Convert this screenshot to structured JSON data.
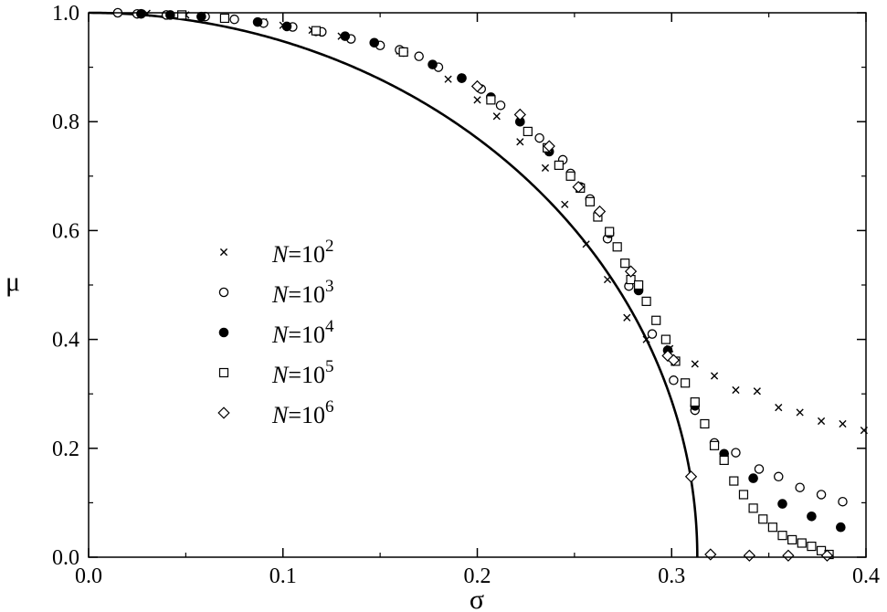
{
  "chart_data": {
    "type": "scatter",
    "xlabel": "σ",
    "ylabel": "μ",
    "xlim": [
      0.0,
      0.4
    ],
    "ylim": [
      0.0,
      1.0
    ],
    "x_ticks": [
      "0.0",
      "0.1",
      "0.2",
      "0.3",
      "0.4"
    ],
    "y_ticks": [
      "0.0",
      "0.2",
      "0.4",
      "0.6",
      "0.8",
      "1.0"
    ],
    "x_tick_values": [
      0.0,
      0.1,
      0.2,
      0.3,
      0.4
    ],
    "y_tick_values": [
      0.0,
      0.2,
      0.4,
      0.6,
      0.8,
      1.0
    ],
    "grid": false,
    "legend_position": "left-middle",
    "series": [
      {
        "name": "N=10^2",
        "legend_prefix": "N",
        "legend_middle": "=10",
        "legend_exp": "2",
        "marker": "cross",
        "points": [
          [
            0.03,
            0.999
          ],
          [
            0.05,
            0.996
          ],
          [
            0.07,
            0.99
          ],
          [
            0.09,
            0.983
          ],
          [
            0.1,
            0.977
          ],
          [
            0.115,
            0.968
          ],
          [
            0.13,
            0.957
          ],
          [
            0.16,
            0.93
          ],
          [
            0.185,
            0.878
          ],
          [
            0.2,
            0.84
          ],
          [
            0.21,
            0.81
          ],
          [
            0.222,
            0.763
          ],
          [
            0.235,
            0.715
          ],
          [
            0.245,
            0.648
          ],
          [
            0.256,
            0.575
          ],
          [
            0.267,
            0.51
          ],
          [
            0.277,
            0.44
          ],
          [
            0.287,
            0.4
          ],
          [
            0.299,
            0.383
          ],
          [
            0.312,
            0.355
          ],
          [
            0.322,
            0.333
          ],
          [
            0.333,
            0.307
          ],
          [
            0.344,
            0.305
          ],
          [
            0.355,
            0.275
          ],
          [
            0.366,
            0.266
          ],
          [
            0.377,
            0.25
          ],
          [
            0.388,
            0.245
          ],
          [
            0.399,
            0.233
          ]
        ]
      },
      {
        "name": "N=10^3",
        "legend_prefix": "N",
        "legend_middle": "=10",
        "legend_exp": "3",
        "marker": "circle-open",
        "points": [
          [
            0.015,
            1.0
          ],
          [
            0.025,
            0.998
          ],
          [
            0.04,
            0.996
          ],
          [
            0.06,
            0.993
          ],
          [
            0.075,
            0.988
          ],
          [
            0.09,
            0.981
          ],
          [
            0.105,
            0.974
          ],
          [
            0.12,
            0.965
          ],
          [
            0.135,
            0.952
          ],
          [
            0.15,
            0.94
          ],
          [
            0.16,
            0.932
          ],
          [
            0.17,
            0.92
          ],
          [
            0.18,
            0.9
          ],
          [
            0.192,
            0.88
          ],
          [
            0.202,
            0.86
          ],
          [
            0.212,
            0.83
          ],
          [
            0.222,
            0.8
          ],
          [
            0.232,
            0.77
          ],
          [
            0.244,
            0.73
          ],
          [
            0.248,
            0.705
          ],
          [
            0.258,
            0.658
          ],
          [
            0.267,
            0.585
          ],
          [
            0.278,
            0.498
          ],
          [
            0.29,
            0.41
          ],
          [
            0.301,
            0.325
          ],
          [
            0.312,
            0.27
          ],
          [
            0.322,
            0.21
          ],
          [
            0.333,
            0.192
          ],
          [
            0.345,
            0.162
          ],
          [
            0.355,
            0.148
          ],
          [
            0.366,
            0.128
          ],
          [
            0.377,
            0.115
          ],
          [
            0.388,
            0.102
          ]
        ]
      },
      {
        "name": "N=10^4",
        "legend_prefix": "N",
        "legend_middle": "=10",
        "legend_exp": "4",
        "marker": "circle-filled",
        "points": [
          [
            0.027,
            0.998
          ],
          [
            0.042,
            0.996
          ],
          [
            0.058,
            0.993
          ],
          [
            0.087,
            0.983
          ],
          [
            0.102,
            0.975
          ],
          [
            0.117,
            0.966
          ],
          [
            0.132,
            0.957
          ],
          [
            0.147,
            0.945
          ],
          [
            0.162,
            0.928
          ],
          [
            0.177,
            0.905
          ],
          [
            0.192,
            0.88
          ],
          [
            0.207,
            0.845
          ],
          [
            0.222,
            0.8
          ],
          [
            0.237,
            0.745
          ],
          [
            0.253,
            0.68
          ],
          [
            0.268,
            0.595
          ],
          [
            0.283,
            0.49
          ],
          [
            0.298,
            0.38
          ],
          [
            0.312,
            0.278
          ],
          [
            0.327,
            0.19
          ],
          [
            0.342,
            0.145
          ],
          [
            0.357,
            0.098
          ],
          [
            0.372,
            0.075
          ],
          [
            0.387,
            0.055
          ]
        ]
      },
      {
        "name": "N=10^5",
        "legend_prefix": "N",
        "legend_middle": "=10",
        "legend_exp": "5",
        "marker": "square-open",
        "points": [
          [
            0.048,
            0.996
          ],
          [
            0.07,
            0.99
          ],
          [
            0.117,
            0.967
          ],
          [
            0.162,
            0.928
          ],
          [
            0.207,
            0.84
          ],
          [
            0.226,
            0.782
          ],
          [
            0.236,
            0.752
          ],
          [
            0.242,
            0.72
          ],
          [
            0.248,
            0.7
          ],
          [
            0.253,
            0.678
          ],
          [
            0.258,
            0.653
          ],
          [
            0.262,
            0.625
          ],
          [
            0.268,
            0.598
          ],
          [
            0.272,
            0.57
          ],
          [
            0.276,
            0.54
          ],
          [
            0.279,
            0.51
          ],
          [
            0.283,
            0.5
          ],
          [
            0.287,
            0.47
          ],
          [
            0.292,
            0.435
          ],
          [
            0.297,
            0.4
          ],
          [
            0.302,
            0.36
          ],
          [
            0.307,
            0.32
          ],
          [
            0.312,
            0.285
          ],
          [
            0.317,
            0.245
          ],
          [
            0.322,
            0.205
          ],
          [
            0.327,
            0.178
          ],
          [
            0.332,
            0.14
          ],
          [
            0.337,
            0.115
          ],
          [
            0.342,
            0.09
          ],
          [
            0.347,
            0.07
          ],
          [
            0.352,
            0.055
          ],
          [
            0.357,
            0.04
          ],
          [
            0.362,
            0.032
          ],
          [
            0.367,
            0.026
          ],
          [
            0.372,
            0.02
          ],
          [
            0.377,
            0.012
          ],
          [
            0.381,
            0.005
          ]
        ]
      },
      {
        "name": "N=10^6",
        "legend_prefix": "N",
        "legend_middle": "=10",
        "legend_exp": "6",
        "marker": "diamond-open",
        "points": [
          [
            0.2,
            0.865
          ],
          [
            0.222,
            0.813
          ],
          [
            0.237,
            0.755
          ],
          [
            0.252,
            0.68
          ],
          [
            0.263,
            0.635
          ],
          [
            0.279,
            0.525
          ],
          [
            0.298,
            0.37
          ],
          [
            0.301,
            0.362
          ],
          [
            0.31,
            0.148
          ],
          [
            0.32,
            0.005
          ],
          [
            0.34,
            0.003
          ],
          [
            0.36,
            0.003
          ],
          [
            0.38,
            0.003
          ]
        ]
      }
    ],
    "curve": {
      "type": "line",
      "sigma_c": 0.3132,
      "formula": "mu = sqrt(1 - (sigma/sigma_c)^2)"
    }
  }
}
